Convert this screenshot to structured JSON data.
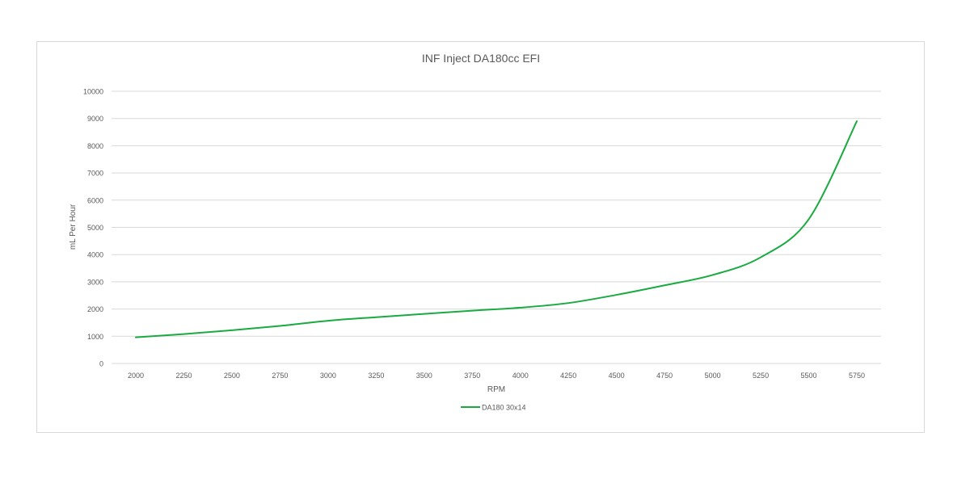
{
  "chart_data": {
    "type": "line",
    "title": "INF Inject DA180cc EFI",
    "xlabel": "RPM",
    "ylabel": "mL Per Hour",
    "x": [
      2000,
      2250,
      2500,
      2750,
      3000,
      3250,
      3500,
      3750,
      4000,
      4250,
      4500,
      4750,
      5000,
      5250,
      5500,
      5750
    ],
    "series": [
      {
        "name": "DA180 30x14",
        "color": "#1aab40",
        "values": [
          960,
          1080,
          1220,
          1380,
          1570,
          1700,
          1820,
          1940,
          2050,
          2220,
          2520,
          2870,
          3250,
          3900,
          5300,
          8900
        ]
      }
    ],
    "xlim": [
      2000,
      5750
    ],
    "ylim": [
      0,
      10000
    ],
    "yticks": [
      0,
      1000,
      2000,
      3000,
      4000,
      5000,
      6000,
      7000,
      8000,
      9000,
      10000
    ],
    "xticks": [
      2000,
      2250,
      2500,
      2750,
      3000,
      3250,
      3500,
      3750,
      4000,
      4250,
      4500,
      4750,
      5000,
      5250,
      5500,
      5750
    ],
    "grid": "horizontal",
    "legend": "bottom",
    "gridColor": "#d9d9d9",
    "textColor": "#595959"
  }
}
